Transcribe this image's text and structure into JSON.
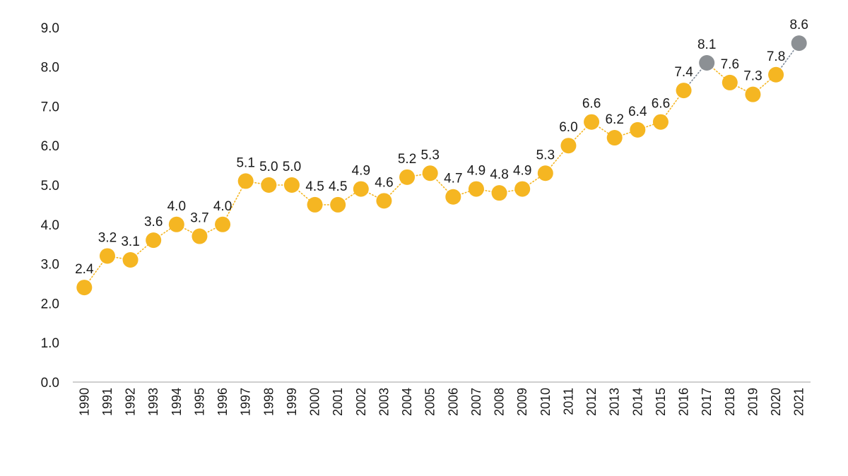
{
  "chart_data": {
    "type": "line",
    "title": "",
    "xlabel": "",
    "ylabel": "",
    "ylim": [
      0,
      9
    ],
    "yticks": [
      "0.0",
      "1.0",
      "2.0",
      "3.0",
      "4.0",
      "5.0",
      "6.0",
      "7.0",
      "8.0",
      "9.0"
    ],
    "grid": false,
    "legend": "none",
    "x": [
      "1990",
      "1991",
      "1992",
      "1993",
      "1994",
      "1995",
      "1996",
      "1997",
      "1998",
      "1999",
      "2000",
      "2001",
      "2002",
      "2003",
      "2004",
      "2005",
      "2006",
      "2007",
      "2008",
      "2009",
      "2010",
      "2011",
      "2012",
      "2013",
      "2014",
      "2015",
      "2016",
      "2017",
      "2018",
      "2019",
      "2020",
      "2021"
    ],
    "values": [
      2.4,
      3.2,
      3.1,
      3.6,
      4.0,
      3.7,
      4.0,
      5.1,
      5.0,
      5.0,
      4.5,
      4.5,
      4.9,
      4.6,
      5.2,
      5.3,
      4.7,
      4.9,
      4.8,
      4.9,
      5.3,
      6.0,
      6.6,
      6.2,
      6.4,
      6.6,
      7.4,
      8.1,
      7.6,
      7.3,
      7.8,
      8.6
    ],
    "labels": [
      "2.4",
      "3.2",
      "3.1",
      "3.6",
      "4.0",
      "3.7",
      "4.0",
      "5.1",
      "5.0",
      "5.0",
      "4.5",
      "4.5",
      "4.9",
      "4.6",
      "5.2",
      "5.3",
      "4.7",
      "4.9",
      "4.8",
      "4.9",
      "5.3",
      "6.0",
      "6.6",
      "6.2",
      "6.4",
      "6.6",
      "7.4",
      "8.1",
      "7.6",
      "7.3",
      "7.8",
      "8.6"
    ],
    "highlighted_points": [
      "2017",
      "2021"
    ],
    "colors": {
      "marker": "#F5B622",
      "highlight_marker": "#8C9094",
      "connector": "#F5B622",
      "highlight_connector": "#7F8A99",
      "axis": "#BFBFBF"
    }
  }
}
